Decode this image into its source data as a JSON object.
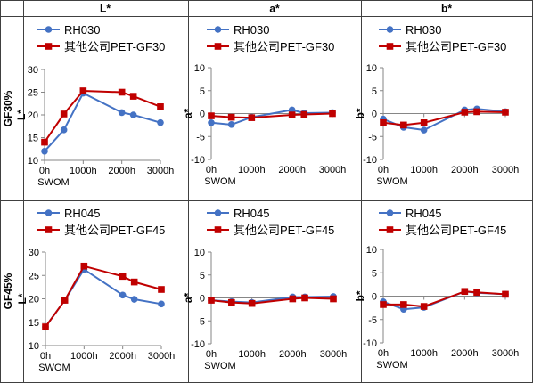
{
  "headers": {
    "col1": "L*",
    "col2": "a*",
    "col3": "b*",
    "row1": "GF30%",
    "row2": "GF45%"
  },
  "colors": {
    "series_a": "#4472C4",
    "series_b": "#C00000",
    "axis": "#868686",
    "grid_border": "#404040"
  },
  "chart_data": [
    {
      "type": "line",
      "row": "GF30%",
      "column": "L*",
      "x": [
        0,
        500,
        1000,
        2000,
        2300,
        3000
      ],
      "x_tick_labels": [
        "0h\nSWOM",
        "1000h",
        "2000h",
        "3000h"
      ],
      "x_tick_values": [
        0,
        1000,
        2000,
        3000
      ],
      "ylim": [
        10,
        30
      ],
      "y_ticks": [
        10,
        15,
        20,
        25,
        30
      ],
      "ylabel": "L*",
      "legend_position": "top",
      "series": [
        {
          "name": "RH030",
          "values": [
            12,
            16.7,
            24.8,
            20.5,
            20,
            18.3
          ]
        },
        {
          "name": "其他公司PET-GF30",
          "values": [
            14,
            20.2,
            25.3,
            25,
            24.1,
            21.8
          ]
        }
      ]
    },
    {
      "type": "line",
      "row": "GF30%",
      "column": "a*",
      "x": [
        0,
        500,
        1000,
        2000,
        2300,
        3000
      ],
      "x_tick_labels": [
        "0h\nSWOM",
        "1000h",
        "2000h",
        "3000h"
      ],
      "x_tick_values": [
        0,
        1000,
        2000,
        3000
      ],
      "ylim": [
        -10,
        10
      ],
      "y_ticks": [
        -10,
        -5,
        0,
        5,
        10
      ],
      "ylabel": "a*",
      "legend_position": "top",
      "series": [
        {
          "name": "RH030",
          "values": [
            -2,
            -2.4,
            -0.8,
            0.8,
            0.1,
            0.2
          ]
        },
        {
          "name": "其他公司PET-GF30",
          "values": [
            -0.5,
            -0.8,
            -0.9,
            -0.3,
            -0.2,
            0
          ]
        }
      ]
    },
    {
      "type": "line",
      "row": "GF30%",
      "column": "b*",
      "x": [
        0,
        500,
        1000,
        2000,
        2300,
        3000
      ],
      "x_tick_labels": [
        "0h\nSWOM",
        "1000h",
        "2000h",
        "3000h"
      ],
      "x_tick_values": [
        0,
        1000,
        2000,
        3000
      ],
      "ylim": [
        -10,
        10
      ],
      "y_ticks": [
        -10,
        -5,
        0,
        5,
        10
      ],
      "ylabel": "b*",
      "legend_position": "top",
      "series": [
        {
          "name": "RH030",
          "values": [
            -1.2,
            -3,
            -3.6,
            0.8,
            1,
            0.4
          ]
        },
        {
          "name": "其他公司PET-GF30",
          "values": [
            -2,
            -2.5,
            -2,
            0.3,
            0.4,
            0.3
          ]
        }
      ]
    },
    {
      "type": "line",
      "row": "GF45%",
      "column": "L*",
      "x": [
        0,
        500,
        1000,
        2000,
        2300,
        3000
      ],
      "x_tick_labels": [
        "0h\nSWOM",
        "1000h",
        "2000h",
        "3000h"
      ],
      "x_tick_values": [
        0,
        1000,
        2000,
        3000
      ],
      "ylim": [
        10,
        30
      ],
      "y_ticks": [
        10,
        15,
        20,
        25,
        30
      ],
      "ylabel": "L*",
      "legend_position": "top",
      "series": [
        {
          "name": "RH045",
          "values": [
            14,
            19.7,
            26.3,
            20.8,
            19.9,
            18.9
          ]
        },
        {
          "name": "其他公司PET-GF45",
          "values": [
            14,
            19.7,
            27,
            24.8,
            23.6,
            22
          ]
        }
      ]
    },
    {
      "type": "line",
      "row": "GF45%",
      "column": "a*",
      "x": [
        0,
        500,
        1000,
        2000,
        2300,
        3000
      ],
      "x_tick_labels": [
        "0h\nSWOM",
        "1000h",
        "2000h",
        "3000h"
      ],
      "x_tick_values": [
        0,
        1000,
        2000,
        3000
      ],
      "ylim": [
        -10,
        10
      ],
      "y_ticks": [
        -10,
        -5,
        0,
        5,
        10
      ],
      "ylabel": "a*",
      "legend_position": "top",
      "series": [
        {
          "name": "RH045",
          "values": [
            -0.5,
            -0.8,
            -1,
            0.2,
            0.2,
            0.3
          ]
        },
        {
          "name": "其他公司PET-GF45",
          "values": [
            -0.5,
            -1,
            -1.2,
            -0.2,
            0,
            -0.2
          ]
        }
      ]
    },
    {
      "type": "line",
      "row": "GF45%",
      "column": "b*",
      "x": [
        0,
        500,
        1000,
        2000,
        2300,
        3000
      ],
      "x_tick_labels": [
        "0h\nSWOM",
        "1000h",
        "2000h",
        "3000h"
      ],
      "x_tick_values": [
        0,
        1000,
        2000,
        3000
      ],
      "ylim": [
        -10,
        10
      ],
      "y_ticks": [
        -10,
        -5,
        0,
        5,
        10
      ],
      "ylabel": "b*",
      "legend_position": "top",
      "series": [
        {
          "name": "RH045",
          "values": [
            -1.2,
            -2.8,
            -2.4,
            1,
            0.7,
            0.4
          ]
        },
        {
          "name": "其他公司PET-GF45",
          "values": [
            -1.8,
            -1.8,
            -2.2,
            1,
            0.8,
            0.4
          ]
        }
      ]
    }
  ]
}
